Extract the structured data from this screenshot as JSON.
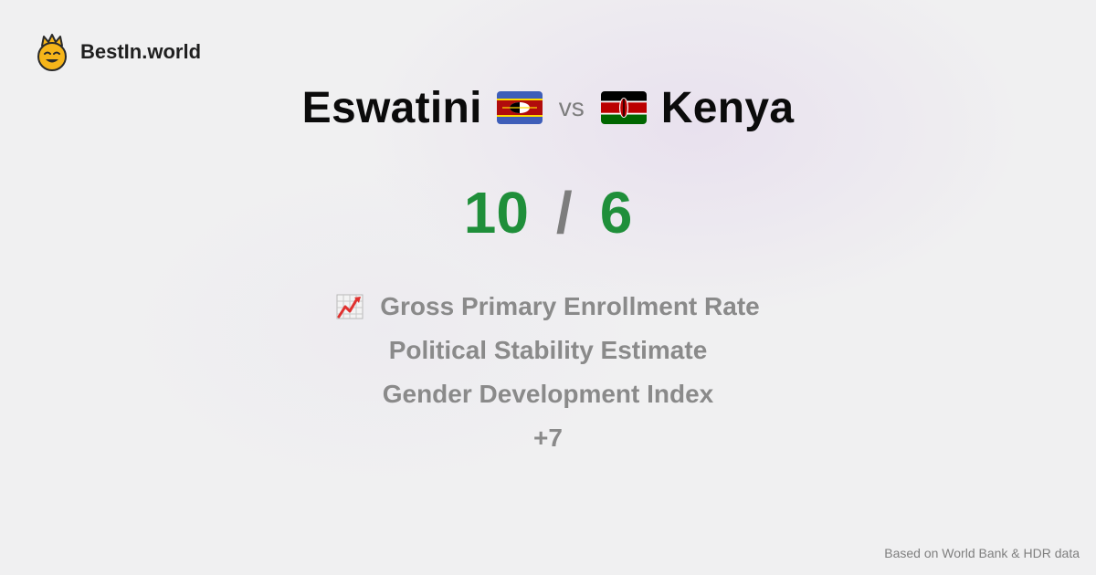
{
  "brand": {
    "name": "BestIn.world",
    "logo_icon": "crowned-smiley-logo"
  },
  "comparison": {
    "left_country": "Eswatini",
    "left_flag": "eswatini-flag-icon",
    "vs_label": "vs",
    "right_country": "Kenya",
    "right_flag": "kenya-flag-icon"
  },
  "score": {
    "left": "10",
    "separator": "/",
    "right": "6",
    "color": "#1f8f3a"
  },
  "metrics": [
    {
      "label": "Gross Primary Enrollment Rate",
      "icon": "chart-increasing-icon"
    },
    {
      "label": "Political Stability Estimate"
    },
    {
      "label": "Gender Development Index"
    },
    {
      "label": "+7"
    }
  ],
  "footer": {
    "source": "Based on World Bank & HDR data"
  }
}
